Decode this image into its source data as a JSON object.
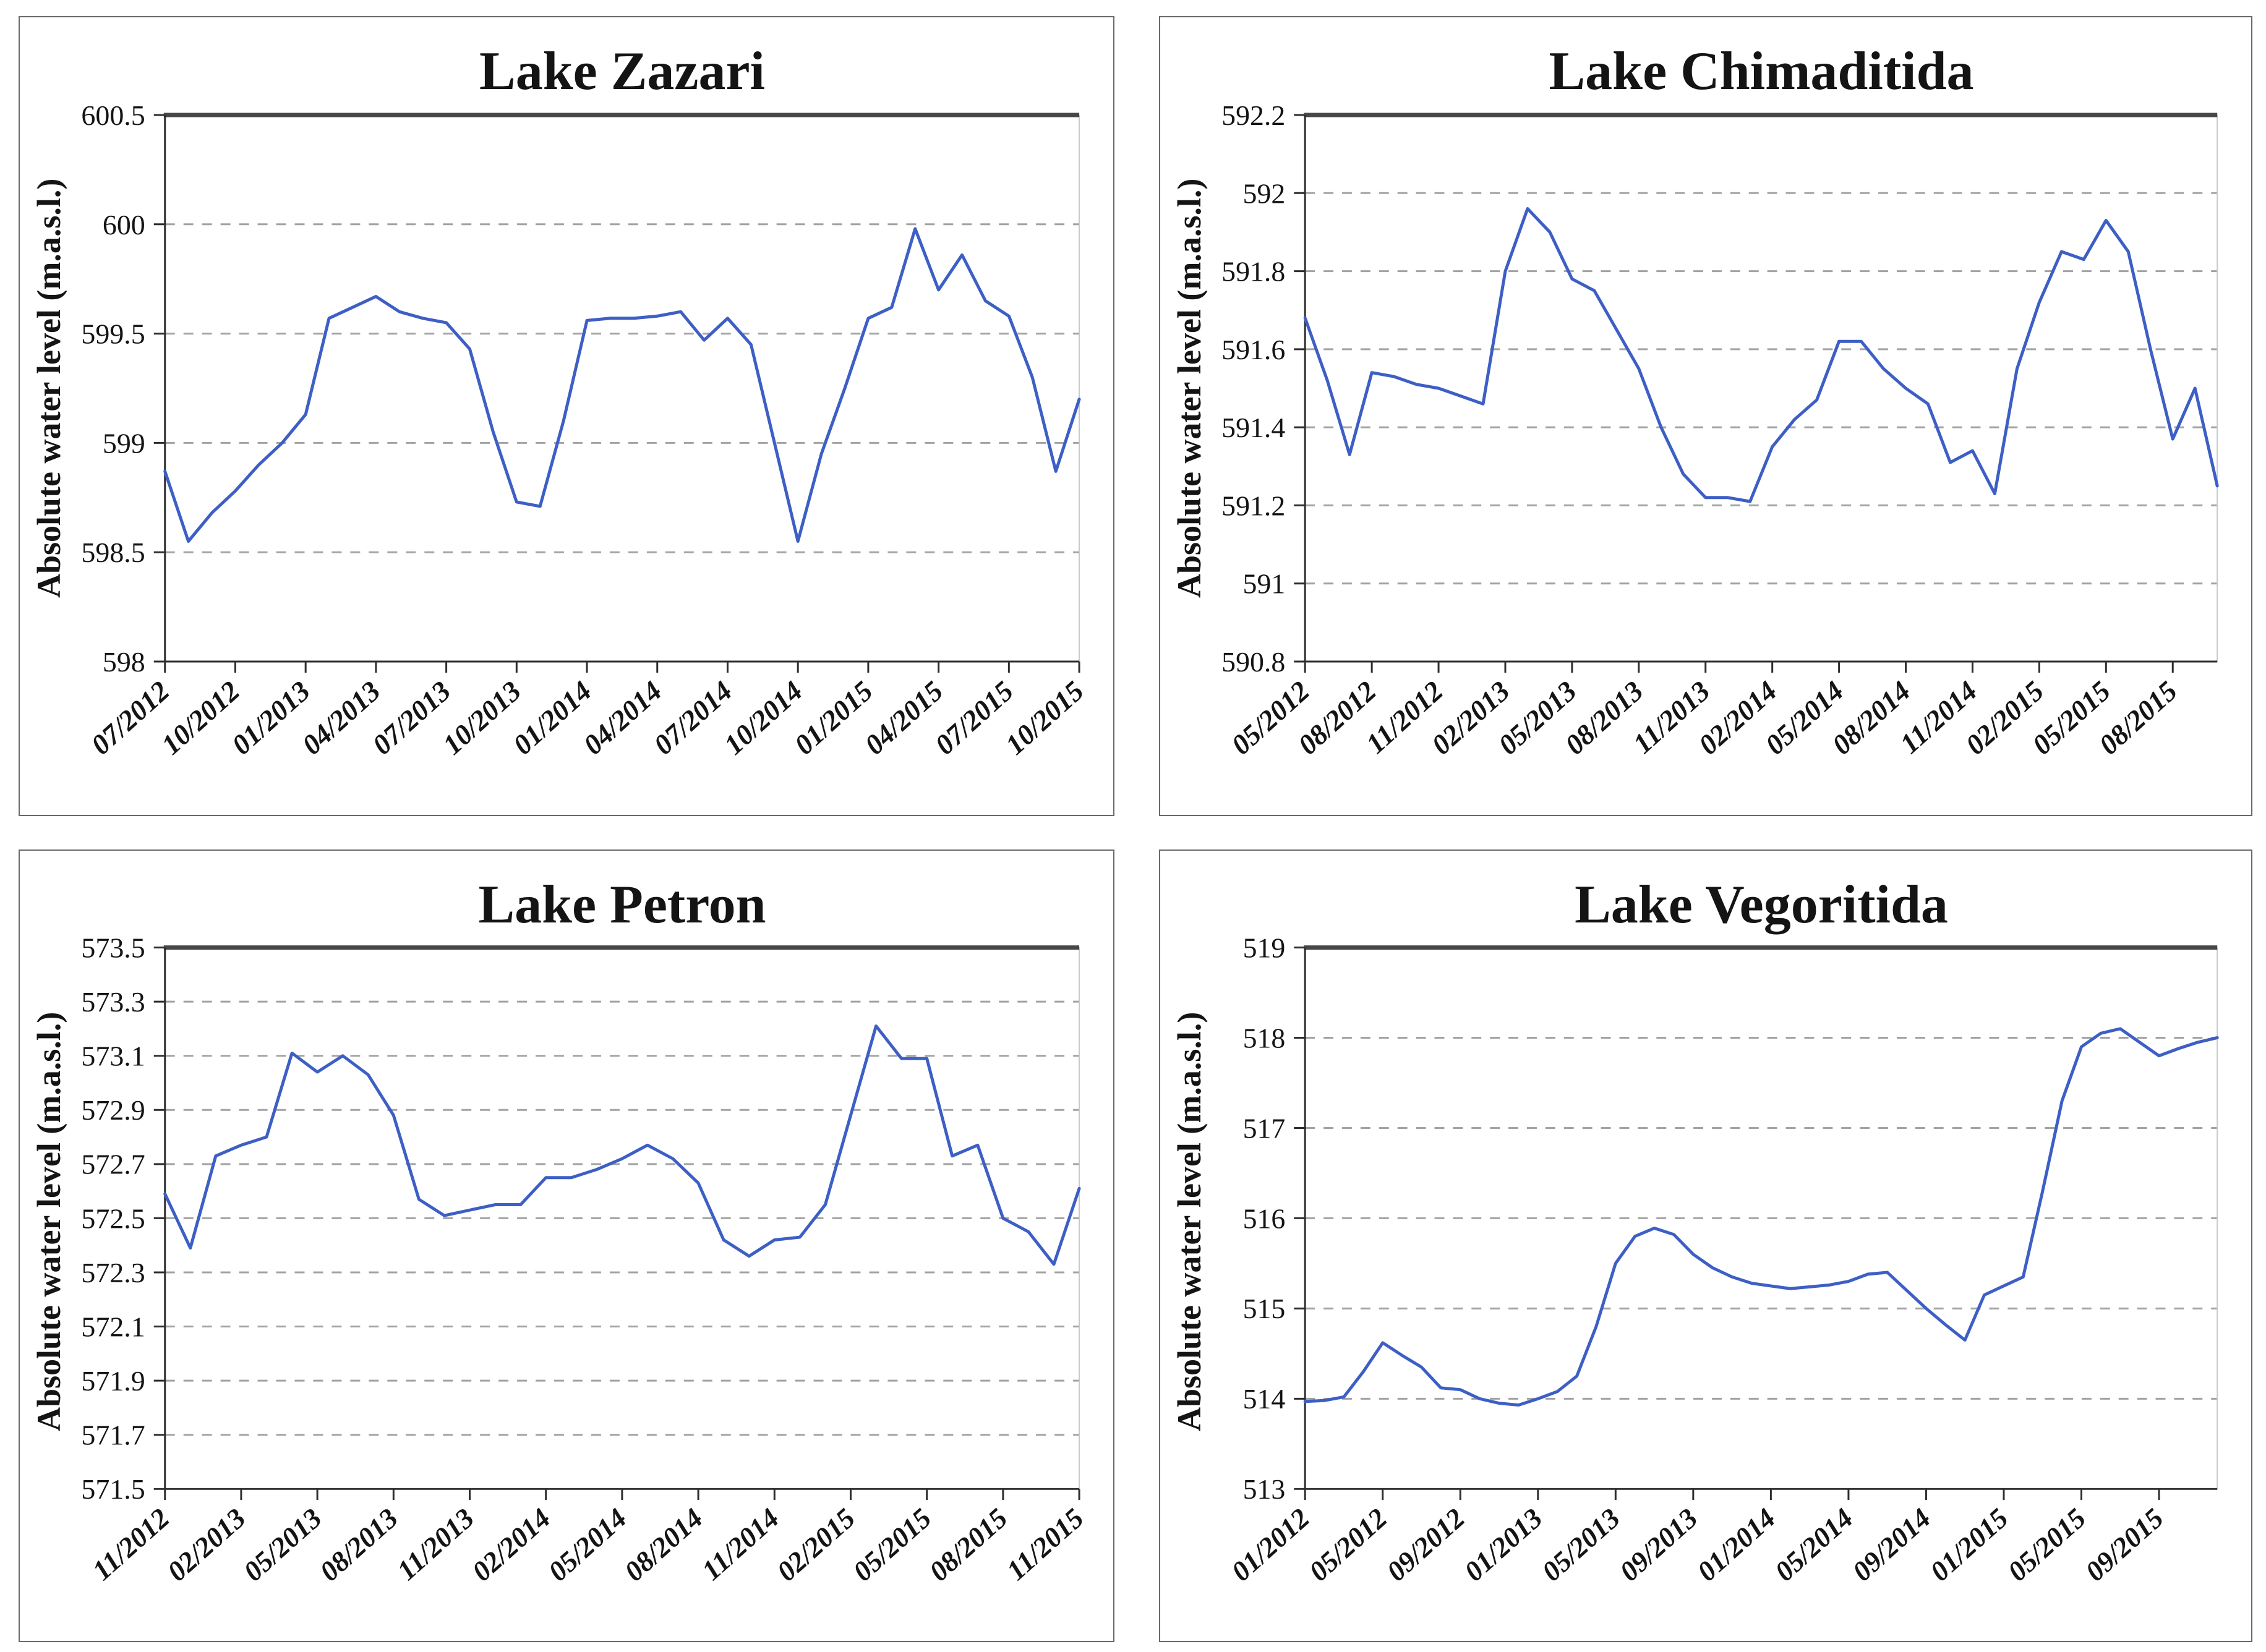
{
  "figure": {
    "background": "#ffffff"
  },
  "style": {
    "line_color": "#3D5FC5",
    "grid_color": "#a3a3a3",
    "axis_color": "#2e2e2e",
    "top_border_color": "#474747",
    "right_border_color": "#c9c9c9",
    "text_color": "#141414"
  },
  "chart_data": [
    {
      "type": "line",
      "title": "Lake Zazari",
      "ylabel": "Absolute water level (m.a.s.l.)",
      "ylim": [
        598,
        600.5
      ],
      "yticks": [
        "598",
        "598.5",
        "599",
        "599.5",
        "600",
        "600.5"
      ],
      "grid": "dashed-horizontal",
      "legend": "none",
      "x": [
        "07/2012",
        "08/2012",
        "09/2012",
        "10/2012",
        "11/2012",
        "12/2012",
        "01/2013",
        "02/2013",
        "03/2013",
        "04/2013",
        "05/2013",
        "06/2013",
        "07/2013",
        "08/2013",
        "09/2013",
        "10/2013",
        "11/2013",
        "12/2013",
        "01/2014",
        "02/2014",
        "03/2014",
        "04/2014",
        "05/2014",
        "06/2014",
        "07/2014",
        "08/2014",
        "09/2014",
        "10/2014",
        "11/2014",
        "12/2014",
        "01/2015",
        "02/2015",
        "03/2015",
        "04/2015",
        "05/2015",
        "06/2015",
        "07/2015",
        "08/2015",
        "09/2015",
        "10/2015"
      ],
      "values": [
        598.87,
        598.55,
        598.68,
        598.78,
        598.9,
        599.0,
        599.13,
        599.57,
        599.62,
        599.67,
        599.6,
        599.57,
        599.55,
        599.43,
        599.05,
        598.73,
        598.71,
        599.1,
        599.56,
        599.57,
        599.57,
        599.58,
        599.6,
        599.47,
        599.57,
        599.45,
        599.0,
        598.55,
        598.95,
        599.25,
        599.57,
        599.62,
        599.98,
        599.7,
        599.86,
        599.65,
        599.58,
        599.3,
        598.87,
        599.2
      ],
      "xticks": [
        "07/2012",
        "10/2012",
        "01/2013",
        "04/2013",
        "07/2013",
        "10/2013",
        "01/2014",
        "04/2014",
        "07/2014",
        "10/2014",
        "01/2015",
        "04/2015",
        "07/2015",
        "10/2015"
      ]
    },
    {
      "type": "line",
      "title": "Lake Chimaditida",
      "ylabel": "Absolute water level (m.a.s.l.)",
      "ylim": [
        590.8,
        592.2
      ],
      "yticks": [
        "590.8",
        "591",
        "591.2",
        "591.4",
        "591.6",
        "591.8",
        "592",
        "592.2"
      ],
      "grid": "dashed-horizontal",
      "legend": "none",
      "x": [
        "05/2012",
        "06/2012",
        "07/2012",
        "08/2012",
        "09/2012",
        "10/2012",
        "11/2012",
        "12/2012",
        "01/2013",
        "02/2013",
        "03/2013",
        "04/2013",
        "05/2013",
        "06/2013",
        "07/2013",
        "08/2013",
        "09/2013",
        "10/2013",
        "11/2013",
        "12/2013",
        "01/2014",
        "02/2014",
        "03/2014",
        "04/2014",
        "05/2014",
        "06/2014",
        "07/2014",
        "08/2014",
        "09/2014",
        "10/2014",
        "11/2014",
        "12/2014",
        "01/2015",
        "02/2015",
        "03/2015",
        "04/2015",
        "05/2015",
        "06/2015",
        "07/2015",
        "08/2015",
        "09/2015",
        "10/2015"
      ],
      "values": [
        591.68,
        591.52,
        591.33,
        591.54,
        591.53,
        591.51,
        591.5,
        591.48,
        591.46,
        591.8,
        591.96,
        591.9,
        591.78,
        591.75,
        591.65,
        591.55,
        591.4,
        591.28,
        591.22,
        591.22,
        591.21,
        591.35,
        591.42,
        591.47,
        591.62,
        591.62,
        591.55,
        591.5,
        591.46,
        591.31,
        591.34,
        591.23,
        591.55,
        591.72,
        591.85,
        591.83,
        591.93,
        591.85,
        591.6,
        591.37,
        591.5,
        591.25
      ],
      "xticks": [
        "05/2012",
        "08/2012",
        "11/2012",
        "02/2013",
        "05/2013",
        "08/2013",
        "11/2013",
        "02/2014",
        "05/2014",
        "08/2014",
        "11/2014",
        "02/2015",
        "05/2015",
        "08/2015"
      ]
    },
    {
      "type": "line",
      "title": "Lake Petron",
      "ylabel": "Absolute water level (m.a.s.l.)",
      "ylim": [
        571.5,
        573.5
      ],
      "yticks": [
        "571.5",
        "571.7",
        "571.9",
        "572.1",
        "572.3",
        "572.5",
        "572.7",
        "572.9",
        "573.1",
        "573.3",
        "573.5"
      ],
      "grid": "dashed-horizontal",
      "legend": "none",
      "x": [
        "11/2012",
        "12/2012",
        "01/2013",
        "02/2013",
        "03/2013",
        "04/2013",
        "05/2013",
        "06/2013",
        "07/2013",
        "08/2013",
        "09/2013",
        "10/2013",
        "11/2013",
        "12/2013",
        "01/2014",
        "02/2014",
        "03/2014",
        "04/2014",
        "05/2014",
        "06/2014",
        "07/2014",
        "08/2014",
        "09/2014",
        "10/2014",
        "11/2014",
        "12/2014",
        "01/2015",
        "02/2015",
        "03/2015",
        "04/2015",
        "05/2015",
        "06/2015",
        "07/2015",
        "08/2015",
        "09/2015",
        "10/2015",
        "11/2015"
      ],
      "values": [
        572.59,
        572.39,
        572.73,
        572.77,
        572.8,
        573.11,
        573.04,
        573.1,
        573.03,
        572.88,
        572.57,
        572.51,
        572.53,
        572.55,
        572.55,
        572.65,
        572.65,
        572.68,
        572.72,
        572.77,
        572.72,
        572.63,
        572.42,
        572.36,
        572.42,
        572.43,
        572.55,
        572.88,
        573.21,
        573.09,
        573.09,
        572.73,
        572.77,
        572.5,
        572.45,
        572.33,
        572.61
      ],
      "xticks": [
        "11/2012",
        "02/2013",
        "05/2013",
        "08/2013",
        "11/2013",
        "02/2014",
        "05/2014",
        "08/2014",
        "11/2014",
        "02/2015",
        "05/2015",
        "08/2015",
        "11/2015"
      ]
    },
    {
      "type": "line",
      "title": "Lake Vegoritida",
      "ylabel": "Absolute water level (m.a.s.l.)",
      "ylim": [
        513,
        519
      ],
      "yticks": [
        "513",
        "514",
        "515",
        "516",
        "517",
        "518",
        "519"
      ],
      "grid": "dashed-horizontal",
      "legend": "none",
      "x": [
        "01/2012",
        "02/2012",
        "03/2012",
        "04/2012",
        "05/2012",
        "06/2012",
        "07/2012",
        "08/2012",
        "09/2012",
        "10/2012",
        "11/2012",
        "12/2012",
        "01/2013",
        "02/2013",
        "03/2013",
        "04/2013",
        "05/2013",
        "06/2013",
        "07/2013",
        "08/2013",
        "09/2013",
        "10/2013",
        "11/2013",
        "12/2013",
        "01/2014",
        "02/2014",
        "03/2014",
        "04/2014",
        "05/2014",
        "06/2014",
        "07/2014",
        "08/2014",
        "09/2014",
        "10/2014",
        "11/2014",
        "12/2014",
        "01/2015",
        "02/2015",
        "03/2015",
        "04/2015",
        "05/2015",
        "06/2015",
        "07/2015",
        "08/2015",
        "09/2015",
        "10/2015",
        "11/2015",
        "12/2015"
      ],
      "values": [
        513.97,
        513.98,
        514.02,
        514.3,
        514.62,
        514.48,
        514.35,
        514.12,
        514.1,
        514.0,
        513.95,
        513.93,
        514.0,
        514.08,
        514.25,
        514.8,
        515.5,
        515.8,
        515.89,
        515.82,
        515.6,
        515.45,
        515.35,
        515.28,
        515.25,
        515.22,
        515.24,
        515.26,
        515.3,
        515.38,
        515.4,
        515.2,
        515.0,
        514.82,
        514.65,
        515.15,
        515.25,
        515.35,
        516.3,
        517.3,
        517.9,
        518.05,
        518.1,
        517.95,
        517.8,
        517.88,
        517.95,
        518.0
      ],
      "xticks": [
        "01/2012",
        "05/2012",
        "09/2012",
        "01/2013",
        "05/2013",
        "09/2013",
        "01/2014",
        "05/2014",
        "09/2014",
        "01/2015",
        "05/2015",
        "09/2015"
      ]
    }
  ]
}
